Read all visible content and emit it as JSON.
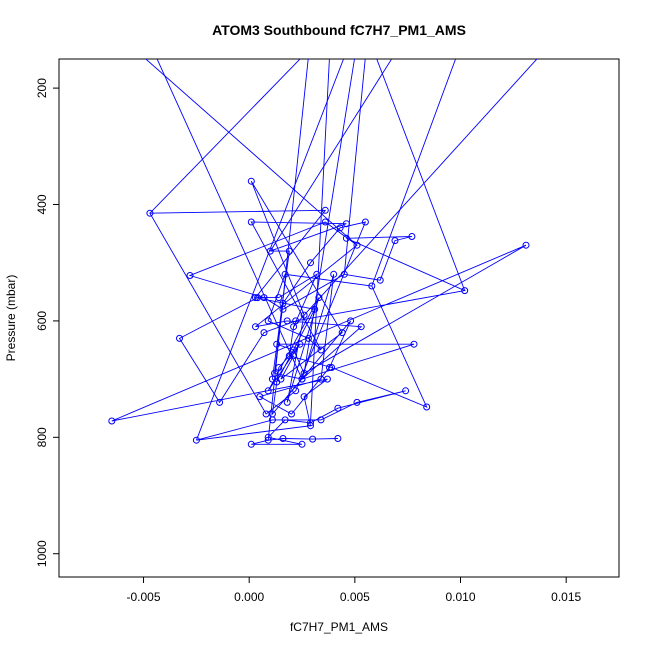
{
  "chart_data": {
    "type": "line",
    "title": "ATOM3 Southbound fC7H7_PM1_AMS",
    "xlabel": "fC7H7_PM1_AMS",
    "ylabel": "Pressure (mbar)",
    "xlim": [
      -0.009,
      0.0175
    ],
    "ylim": [
      1040,
      150
    ],
    "y_reversed": true,
    "grid": false,
    "legend": "none",
    "x_ticks": [
      {
        "value": -0.005,
        "label": "-0.005"
      },
      {
        "value": 0.0,
        "label": "0.000"
      },
      {
        "value": 0.005,
        "label": "0.005"
      },
      {
        "value": 0.01,
        "label": "0.010"
      },
      {
        "value": 0.015,
        "label": "0.015"
      }
    ],
    "y_ticks": [
      {
        "value": 200,
        "label": "200"
      },
      {
        "value": 400,
        "label": "400"
      },
      {
        "value": 600,
        "label": "600"
      },
      {
        "value": 800,
        "label": "800"
      },
      {
        "value": 1000,
        "label": "1000"
      }
    ],
    "colors": {
      "series": "#0000ff",
      "axes": "#000000",
      "background": "#ffffff"
    },
    "series": [
      {
        "marker": "open-circle",
        "x": [
          0.0042,
          0.003,
          0.0016,
          0.0009,
          0.0001,
          0.0025,
          0.0009,
          0.0017,
          0.0029,
          0.0042,
          0.0074,
          0.0051,
          0.0034,
          0.0011,
          -0.0025,
          0.0029,
          0.0026,
          0.0037,
          -0.0065,
          0.0131,
          0.0026,
          0.0021,
          0.0013,
          0.0078,
          0.0025,
          0.0053,
          0.0018,
          0.0003,
          0.0051,
          0.0036,
          -0.0028,
          0.0007,
          0.0016,
          0.0045,
          0.0062,
          0.0069,
          0.0077,
          0.0046,
          0.0102,
          0.0022,
          0.0007,
          -0.0014,
          -0.0033,
          0.0004,
          0.0014,
          0.0032,
          0.0021,
          0.0019,
          0.0039,
          0.0084,
          0.0058,
          0.0017,
          0.0009,
          0.0028,
          0.0034,
          0.0001,
          0.0046,
          0.001,
          0.0019,
          0.0011,
          0.0013,
          0.0031,
          0.0003,
          0.0036,
          -0.0047,
          0.0008,
          0.0022,
          0.0055,
          0.0043,
          0.0029,
          0.0016,
          0.0012,
          0.0025,
          0.004,
          0.0034,
          0.0005,
          0.002,
          0.0038,
          0.0048,
          0.0011,
          0.0014,
          0.0024,
          0.0009,
          0.0033,
          0.0018,
          0.0026,
          0.0001,
          0.0044,
          0.0015,
          0.0021
        ],
        "y": [
          802,
          803,
          802,
          805,
          812,
          812,
          800,
          770,
          775,
          750,
          720,
          740,
          770,
          770,
          805,
          780,
          730,
          700,
          772,
          470,
          690,
          650,
          640,
          640,
          700,
          610,
          600,
          610,
          470,
          430,
          522,
          560,
          580,
          520,
          530,
          462,
          455,
          458,
          548,
          600,
          620,
          740,
          630,
          560,
          560,
          520,
          610,
          660,
          680,
          748,
          540,
          520,
          600,
          630,
          650,
          430,
          433,
          480,
          480,
          700,
          705,
          580,
          560,
          410,
          415,
          760,
          720,
          430,
          440,
          500,
          570,
          690,
          700,
          520,
          700,
          730,
          760,
          680,
          600,
          760,
          680,
          640,
          720,
          560,
          740,
          590,
          360,
          620,
          700,
          660
        ]
      }
    ],
    "segments_exit_top": [
      {
        "x": 0.0028,
        "y": 150
      },
      {
        "x": 0.0038,
        "y": 150
      },
      {
        "x": 0.0045,
        "y": 150
      },
      {
        "x": 0.005,
        "y": 150
      },
      {
        "x": -0.005,
        "y": 150
      },
      {
        "x": 0.0055,
        "y": 150
      },
      {
        "x": 0.006,
        "y": 150
      },
      {
        "x": 0.0137,
        "y": 150
      },
      {
        "x": 0.0098,
        "y": 150
      },
      {
        "x": 0.0068,
        "y": 150
      },
      {
        "x": 0.0025,
        "y": 150
      },
      {
        "x": -0.0044,
        "y": 150
      }
    ]
  }
}
